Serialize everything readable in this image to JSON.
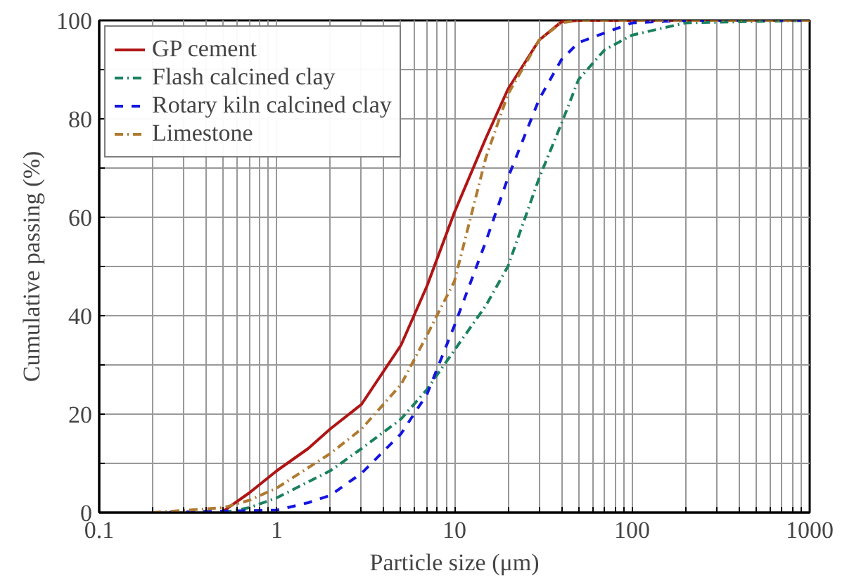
{
  "chart_data": {
    "type": "line",
    "xlabel": "Particle size (μm)",
    "ylabel": "Cumulative passing (%)",
    "log": "x",
    "xlim": [
      0.1,
      1000
    ],
    "ylim": [
      0,
      100
    ],
    "xticks": [
      0.1,
      {
        "value": 0.2,
        "label": null
      },
      {
        "value": 0.3,
        "label": null
      },
      {
        "value": 0.4,
        "label": null
      },
      {
        "value": 0.5,
        "label": null
      },
      {
        "value": 0.6,
        "label": null
      },
      {
        "value": 0.7,
        "label": null
      },
      {
        "value": 0.8,
        "label": null
      },
      {
        "value": 0.9,
        "label": null
      },
      1,
      {
        "value": 2,
        "label": null
      },
      {
        "value": 3,
        "label": null
      },
      {
        "value": 4,
        "label": null
      },
      {
        "value": 5,
        "label": null
      },
      {
        "value": 6,
        "label": null
      },
      {
        "value": 7,
        "label": null
      },
      {
        "value": 8,
        "label": null
      },
      {
        "value": 9,
        "label": null
      },
      10,
      {
        "value": 20,
        "label": null
      },
      {
        "value": 30,
        "label": null
      },
      {
        "value": 40,
        "label": null
      },
      {
        "value": 50,
        "label": null
      },
      {
        "value": 60,
        "label": null
      },
      {
        "value": 70,
        "label": null
      },
      {
        "value": 80,
        "label": null
      },
      {
        "value": 90,
        "label": null
      },
      100,
      {
        "value": 200,
        "label": null
      },
      {
        "value": 300,
        "label": null
      },
      {
        "value": 400,
        "label": null
      },
      {
        "value": 500,
        "label": null
      },
      {
        "value": 600,
        "label": null
      },
      {
        "value": 700,
        "label": null
      },
      {
        "value": 800,
        "label": null
      },
      {
        "value": 900,
        "label": null
      },
      1000
    ],
    "yticks": [
      0,
      {
        "value": 10,
        "label": null
      },
      20,
      {
        "value": 30,
        "label": null
      },
      40,
      {
        "value": 50,
        "label": null
      },
      60,
      {
        "value": 70,
        "label": null
      },
      80,
      {
        "value": 90,
        "label": null
      },
      100
    ],
    "grid": true,
    "legend": "top left",
    "marker": "none",
    "series": [
      {
        "name": "GP cement",
        "color": "#b01515",
        "line_style": "solid",
        "x": [
          0.5,
          0.7,
          1,
          1.5,
          2,
          3,
          5,
          7,
          10,
          15,
          20,
          30,
          40,
          50,
          100,
          1000
        ],
        "values": [
          0.3,
          4,
          8.5,
          13,
          17,
          22,
          34,
          46,
          61,
          76,
          86,
          96,
          99.7,
          100,
          100,
          100
        ]
      },
      {
        "name": "Flash calcined clay",
        "color": "#1a8060",
        "line_style": "dashdot",
        "x": [
          0.5,
          0.7,
          1,
          2,
          3,
          5,
          7,
          10,
          15,
          20,
          30,
          40,
          50,
          70,
          100,
          200,
          1000
        ],
        "values": [
          0,
          1,
          3,
          8.5,
          13,
          19,
          25,
          33,
          42,
          50,
          68,
          79,
          88,
          94,
          97,
          99.5,
          100
        ]
      },
      {
        "name": "Rotary kiln calcined clay",
        "color": "#1515e0",
        "line_style": "dashed",
        "x": [
          0.2,
          1,
          1.5,
          2,
          3,
          5,
          7,
          10,
          15,
          20,
          30,
          40,
          50,
          100,
          200,
          1000
        ],
        "values": [
          0,
          0.5,
          2,
          3.5,
          8,
          16,
          24,
          38,
          55,
          68,
          84,
          92,
          95.5,
          99.5,
          100,
          100
        ]
      },
      {
        "name": "Limestone",
        "color": "#b07a30",
        "line_style": "dashdot",
        "x": [
          0.2,
          0.5,
          0.7,
          1,
          2,
          3,
          5,
          7,
          10,
          15,
          20,
          30,
          40,
          50,
          1000
        ],
        "values": [
          0,
          1,
          2.5,
          5,
          12,
          17,
          26,
          36,
          47,
          72,
          85,
          96,
          99.5,
          100,
          100
        ]
      }
    ]
  }
}
